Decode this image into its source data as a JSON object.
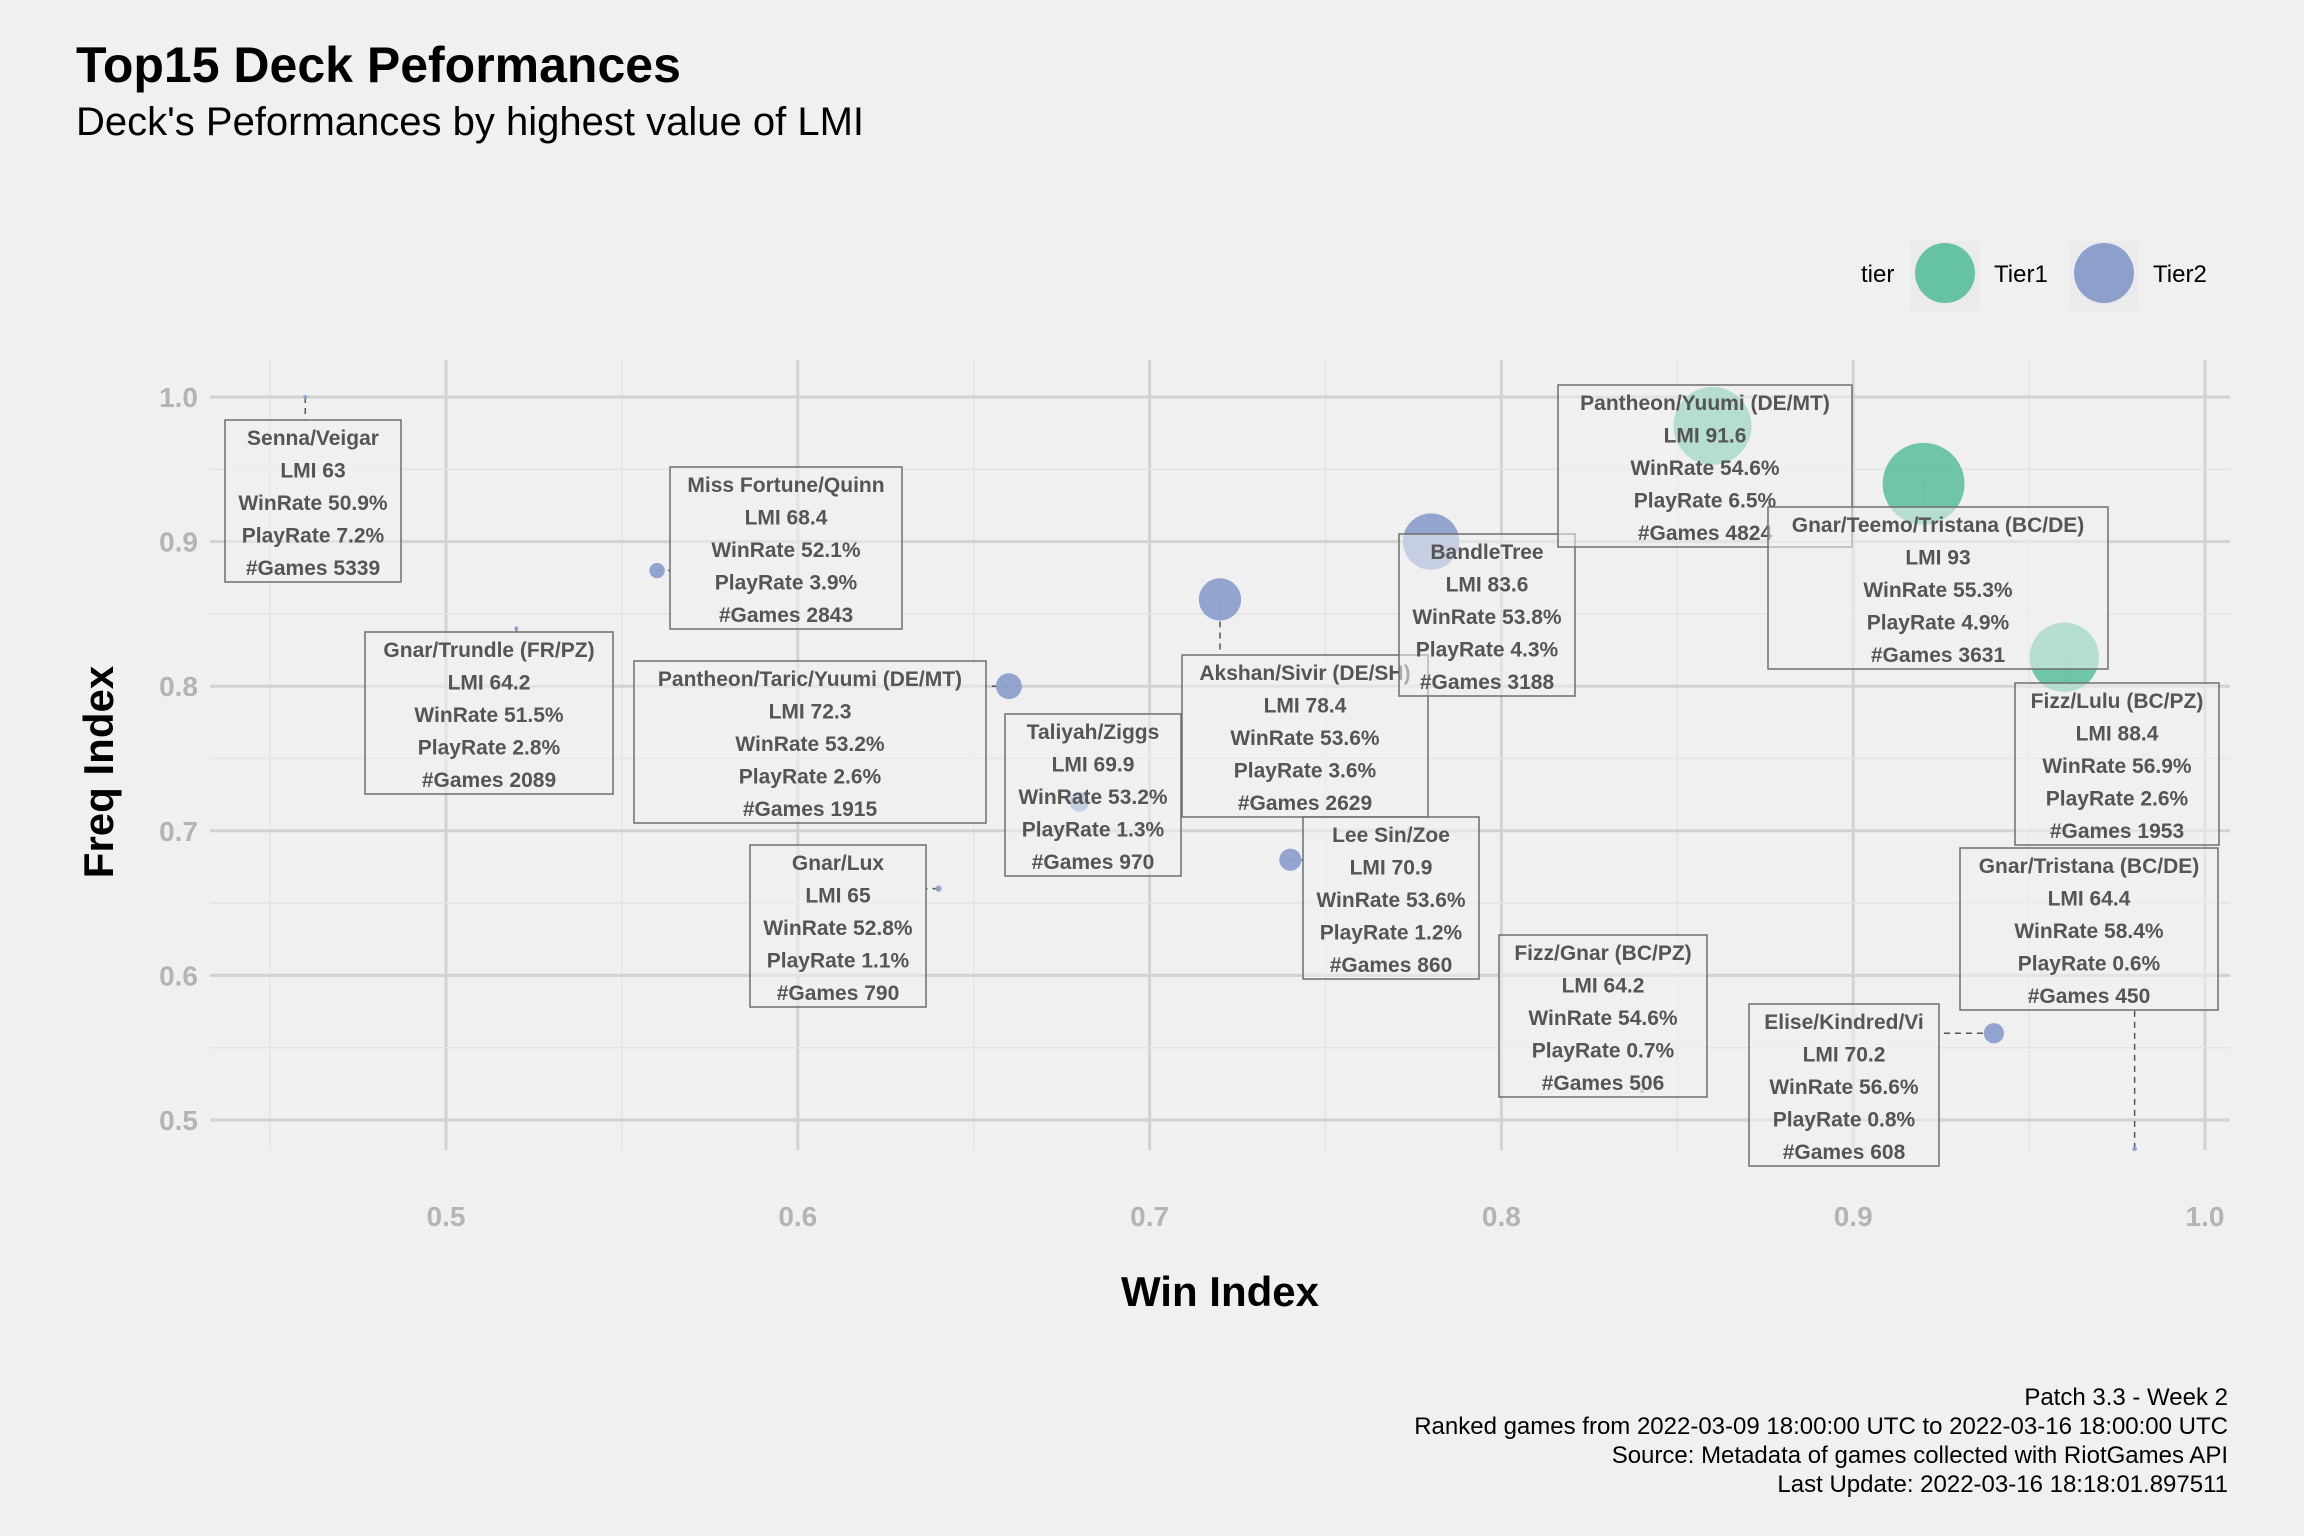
{
  "chart_data": {
    "type": "scatter",
    "title": "Top15 Deck Peformances",
    "subtitle": "Deck's Peformances by highest value of LMI",
    "xlabel": "Win Index",
    "ylabel": "Freq Index",
    "xlim": [
      0.46,
      1.005
    ],
    "ylim": [
      0.455,
      1.025
    ],
    "xticks": [
      "0.5",
      "0.6",
      "0.7",
      "0.8",
      "0.9",
      "1.0"
    ],
    "yticks": [
      "0.5",
      "0.6",
      "0.7",
      "0.8",
      "0.9",
      "1.0"
    ],
    "grid": true,
    "legend": {
      "title": "tier",
      "position": "top-right",
      "entries": [
        {
          "name": "Tier1",
          "color": "#66c2a5"
        },
        {
          "name": "Tier2",
          "color": "#8da0cb"
        }
      ]
    },
    "points": [
      {
        "name": "Senna/Veigar",
        "x": 0.46,
        "y": 1.0,
        "tier": "Tier2",
        "lines": [
          "Senna/Veigar",
          "LMI 63",
          "WinRate 50.9%",
          "PlayRate 7.2%",
          "#Games 5339"
        ]
      },
      {
        "name": "Miss Fortune/Quinn",
        "x": 0.56,
        "y": 0.88,
        "tier": "Tier2",
        "lines": [
          "Miss Fortune/Quinn",
          "LMI 68.4",
          "WinRate 52.1%",
          "PlayRate 3.9%",
          "#Games 2843"
        ]
      },
      {
        "name": "Gnar/Trundle (FR/PZ)",
        "x": 0.52,
        "y": 0.84,
        "tier": "Tier2",
        "lines": [
          "Gnar/Trundle (FR/PZ)",
          "LMI 64.2",
          "WinRate 51.5%",
          "PlayRate 2.8%",
          "#Games 2089"
        ]
      },
      {
        "name": "Pantheon/Taric/Yuumi (DE/MT)",
        "x": 0.66,
        "y": 0.8,
        "tier": "Tier2",
        "lines": [
          "Pantheon/Taric/Yuumi (DE/MT)",
          "LMI 72.3",
          "WinRate 53.2%",
          "PlayRate 2.6%",
          "#Games 1915"
        ]
      },
      {
        "name": "Taliyah/Ziggs",
        "x": 0.68,
        "y": 0.72,
        "tier": "Tier2",
        "lines": [
          "Taliyah/Ziggs",
          "LMI 69.9",
          "WinRate 53.2%",
          "PlayRate 1.3%",
          "#Games 970"
        ]
      },
      {
        "name": "Gnar/Lux",
        "x": 0.64,
        "y": 0.66,
        "tier": "Tier2",
        "lines": [
          "Gnar/Lux",
          "LMI 65",
          "WinRate 52.8%",
          "PlayRate 1.1%",
          "#Games 790"
        ]
      },
      {
        "name": "Akshan/Sivir (DE/SH)",
        "x": 0.72,
        "y": 0.86,
        "tier": "Tier2",
        "lines": [
          "Akshan/Sivir (DE/SH)",
          "LMI 78.4",
          "WinRate 53.6%",
          "PlayRate 3.6%",
          "#Games 2629"
        ]
      },
      {
        "name": "Lee Sin/Zoe",
        "x": 0.74,
        "y": 0.68,
        "tier": "Tier2",
        "lines": [
          "Lee Sin/Zoe",
          "LMI 70.9",
          "WinRate 53.6%",
          "PlayRate 1.2%",
          "#Games 860"
        ]
      },
      {
        "name": "BandleTree",
        "x": 0.78,
        "y": 0.9,
        "tier": "Tier2",
        "lines": [
          "BandleTree",
          "LMI 83.6",
          "WinRate 53.8%",
          "PlayRate 4.3%",
          "#Games 3188"
        ]
      },
      {
        "name": "Pantheon/Yuumi (DE/MT)",
        "x": 0.86,
        "y": 0.98,
        "tier": "Tier1",
        "lines": [
          "Pantheon/Yuumi (DE/MT)",
          "LMI 91.6",
          "WinRate 54.6%",
          "PlayRate 6.5%",
          "#Games 4824"
        ]
      },
      {
        "name": "Gnar/Teemo/Tristana (BC/DE)",
        "x": 0.92,
        "y": 0.94,
        "tier": "Tier1",
        "lines": [
          "Gnar/Teemo/Tristana (BC/DE)",
          "LMI 93",
          "WinRate 55.3%",
          "PlayRate 4.9%",
          "#Games 3631"
        ]
      },
      {
        "name": "Fizz/Lulu (BC/PZ)",
        "x": 0.96,
        "y": 0.82,
        "tier": "Tier1",
        "lines": [
          "Fizz/Lulu (BC/PZ)",
          "LMI 88.4",
          "WinRate 56.9%",
          "PlayRate 2.6%",
          "#Games 1953"
        ]
      },
      {
        "name": "Fizz/Gnar (BC/PZ)",
        "x": 0.84,
        "y": 0.52,
        "tier": "Tier2",
        "lines": [
          "Fizz/Gnar (BC/PZ)",
          "LMI 64.2",
          "WinRate 54.6%",
          "PlayRate 0.7%",
          "#Games 506"
        ]
      },
      {
        "name": "Elise/Kindred/Vi",
        "x": 0.94,
        "y": 0.56,
        "tier": "Tier2",
        "lines": [
          "Elise/Kindred/Vi",
          "LMI 70.2",
          "WinRate 56.6%",
          "PlayRate 0.8%",
          "#Games 608"
        ]
      },
      {
        "name": "Gnar/Tristana (BC/DE)",
        "x": 0.98,
        "y": 0.48,
        "tier": "Tier2",
        "lines": [
          "Gnar/Tristana (BC/DE)",
          "LMI 64.4",
          "WinRate 58.4%",
          "PlayRate 0.6%",
          "#Games 450"
        ]
      }
    ]
  },
  "caption": {
    "line1": "Patch 3.3 - Week 2",
    "line2": "Ranked games from 2022-03-09 18:00:00 UTC to 2022-03-16 18:00:00 UTC",
    "line3": "Source: Metadata of games collected with RiotGames API",
    "line4": "Last Update: 2022-03-16 18:18:01.897511"
  }
}
